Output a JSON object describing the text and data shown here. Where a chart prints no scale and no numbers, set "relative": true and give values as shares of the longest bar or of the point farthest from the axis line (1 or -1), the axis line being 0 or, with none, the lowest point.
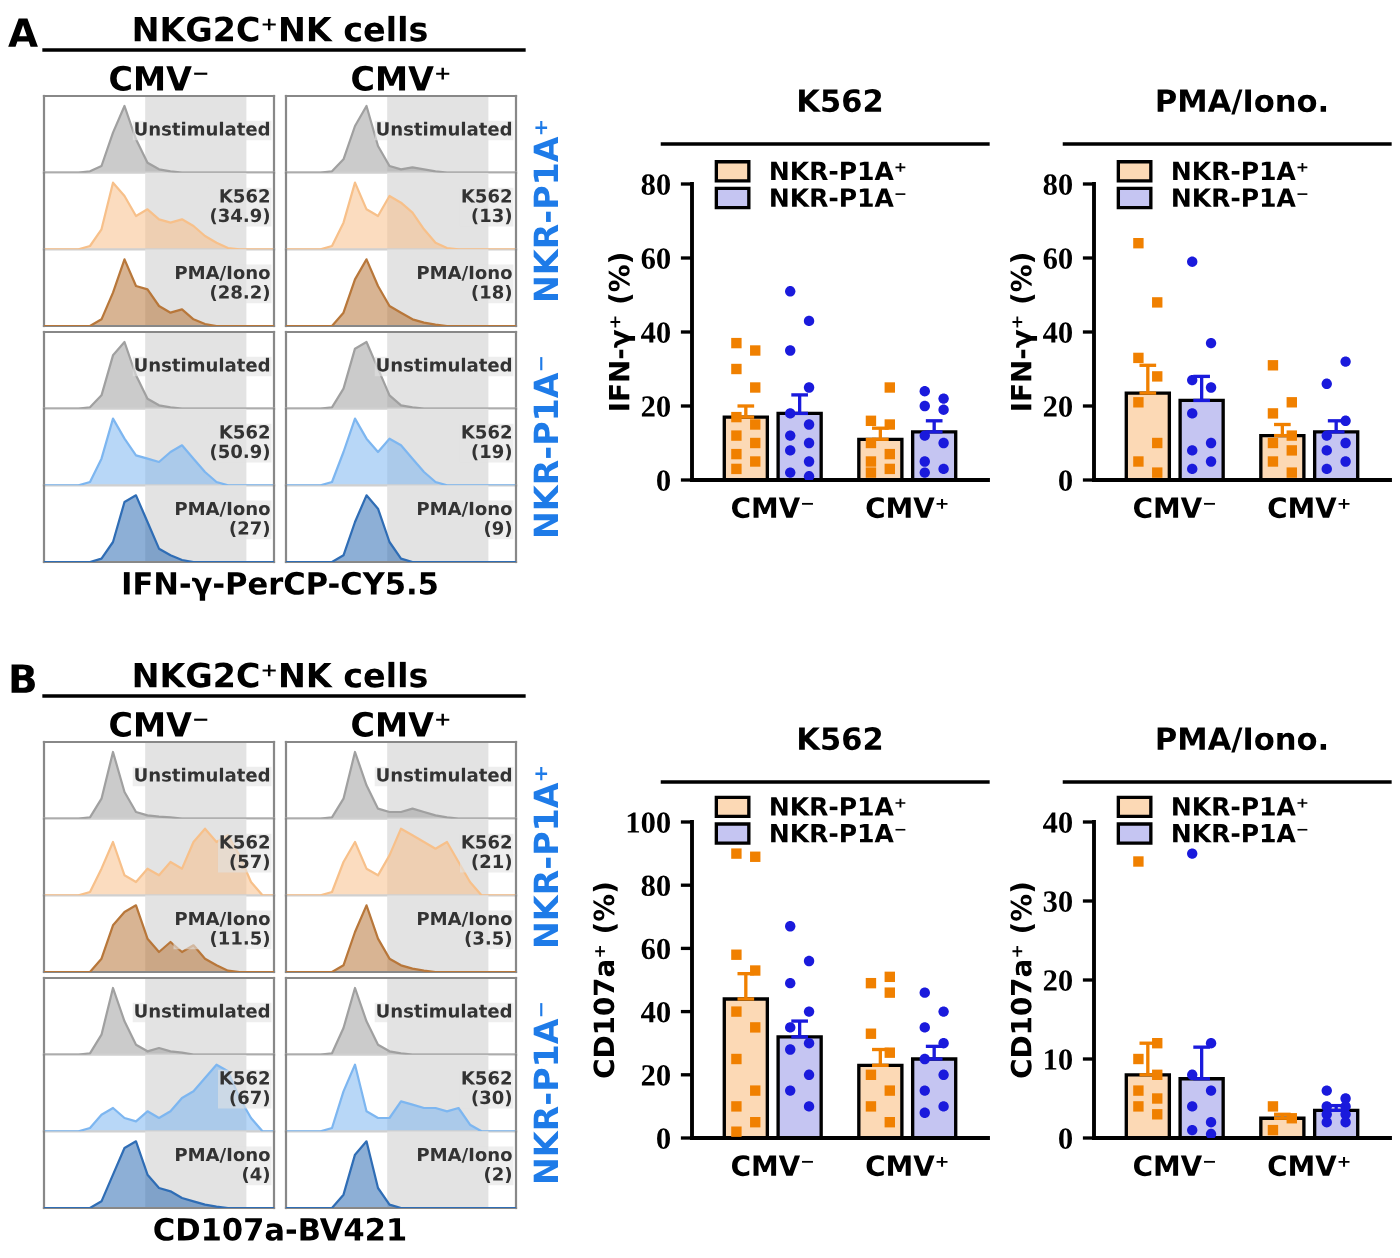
{
  "chart_data": [
    {
      "type": "area",
      "relative": true,
      "title": "A",
      "subtitle": "NKG2C⁺NK cells",
      "xlabel": "CMV⁻",
      "categories": [
        null,
        null,
        null,
        null,
        null,
        null,
        null,
        null,
        null,
        null,
        null,
        null,
        null,
        null,
        null,
        null,
        null,
        null,
        null,
        null,
        null
      ],
      "series": [
        {
          "color": "#a0a0a0",
          "values": [
            0,
            0,
            0,
            0,
            0.02,
            0.1,
            0.6,
            1,
            0.5,
            0.15,
            0.05,
            0.02,
            0,
            0,
            0,
            0,
            0,
            0,
            0,
            0,
            0
          ]
        }
      ],
      "annotations": [
        "Unstimulated"
      ]
    },
    {
      "type": "area",
      "relative": true,
      "categories": [
        null,
        null,
        null,
        null,
        null,
        null,
        null,
        null,
        null,
        null,
        null,
        null,
        null,
        null,
        null,
        null,
        null,
        null,
        null,
        null,
        null
      ],
      "series": [
        {
          "color": "#f7c08a",
          "values": [
            0,
            0,
            0,
            0,
            0.05,
            0.3,
            1,
            0.8,
            0.5,
            0.6,
            0.45,
            0.4,
            0.45,
            0.35,
            0.2,
            0.1,
            0.02,
            0,
            0,
            0,
            0
          ]
        }
      ],
      "annotations": [
        "K562\n(34.9)"
      ]
    },
    {
      "type": "area",
      "relative": true,
      "categories": [
        null,
        null,
        null,
        null,
        null,
        null,
        null,
        null,
        null,
        null,
        null,
        null,
        null,
        null,
        null,
        null,
        null,
        null,
        null,
        null,
        null
      ],
      "series": [
        {
          "color": "#b8773a",
          "values": [
            0,
            0,
            0,
            0,
            0,
            0.1,
            0.5,
            1,
            0.6,
            0.55,
            0.3,
            0.2,
            0.25,
            0.1,
            0.03,
            0,
            0,
            0,
            0,
            0,
            0
          ]
        }
      ],
      "annotations": [
        "PMA/Iono\n(28.2)"
      ]
    },
    {
      "type": "area",
      "relative": true,
      "xlabel": "CMV⁺",
      "categories": [
        null,
        null,
        null,
        null,
        null,
        null,
        null,
        null,
        null,
        null,
        null,
        null,
        null,
        null,
        null,
        null,
        null,
        null,
        null,
        null,
        null
      ],
      "series": [
        {
          "color": "#a0a0a0",
          "values": [
            0,
            0,
            0,
            0,
            0.02,
            0.2,
            0.7,
            1,
            0.4,
            0.1,
            0.05,
            0.08,
            0.05,
            0.02,
            0,
            0,
            0,
            0,
            0,
            0,
            0
          ]
        }
      ],
      "annotations": [
        "Unstimulated"
      ]
    },
    {
      "type": "area",
      "relative": true,
      "ylabel": "NKR-P1A⁺",
      "categories": [
        null,
        null,
        null,
        null,
        null,
        null,
        null,
        null,
        null,
        null,
        null,
        null,
        null,
        null,
        null,
        null,
        null,
        null,
        null,
        null,
        null
      ],
      "series": [
        {
          "color": "#f7c08a",
          "values": [
            0,
            0,
            0,
            0,
            0.05,
            0.4,
            1,
            0.6,
            0.5,
            0.8,
            0.7,
            0.55,
            0.3,
            0.1,
            0.02,
            0,
            0,
            0,
            0,
            0,
            0
          ]
        }
      ],
      "annotations": [
        "K562\n(13)"
      ]
    },
    {
      "type": "area",
      "relative": true,
      "categories": [
        null,
        null,
        null,
        null,
        null,
        null,
        null,
        null,
        null,
        null,
        null,
        null,
        null,
        null,
        null,
        null,
        null,
        null,
        null,
        null,
        null
      ],
      "series": [
        {
          "color": "#b8773a",
          "values": [
            0,
            0,
            0,
            0,
            0,
            0.2,
            0.7,
            1,
            0.6,
            0.3,
            0.2,
            0.1,
            0.05,
            0.02,
            0,
            0,
            0,
            0,
            0,
            0,
            0
          ]
        }
      ],
      "annotations": [
        "PMA/Iono\n(18)"
      ]
    },
    {
      "type": "area",
      "relative": true,
      "categories": [
        null,
        null,
        null,
        null,
        null,
        null,
        null,
        null,
        null,
        null,
        null,
        null,
        null,
        null,
        null,
        null,
        null,
        null,
        null,
        null,
        null
      ],
      "series": [
        {
          "color": "#a0a0a0",
          "values": [
            0,
            0,
            0,
            0,
            0.02,
            0.2,
            0.8,
            1,
            0.5,
            0.15,
            0.05,
            0.02,
            0,
            0,
            0,
            0,
            0,
            0,
            0,
            0,
            0
          ]
        }
      ],
      "annotations": [
        "Unstimulated"
      ]
    },
    {
      "type": "area",
      "relative": true,
      "categories": [
        null,
        null,
        null,
        null,
        null,
        null,
        null,
        null,
        null,
        null,
        null,
        null,
        null,
        null,
        null,
        null,
        null,
        null,
        null,
        null,
        null
      ],
      "series": [
        {
          "color": "#7db6f0",
          "values": [
            0,
            0,
            0,
            0,
            0.05,
            0.4,
            1,
            0.7,
            0.45,
            0.4,
            0.35,
            0.5,
            0.6,
            0.4,
            0.2,
            0.05,
            0,
            0,
            0,
            0,
            0
          ]
        }
      ],
      "annotations": [
        "K562\n(50.9)"
      ]
    },
    {
      "type": "area",
      "relative": true,
      "xlabel": "IFN-γ-PerCP-CY5.5",
      "categories": [
        null,
        null,
        null,
        null,
        null,
        null,
        null,
        null,
        null,
        null,
        null,
        null,
        null,
        null,
        null,
        null,
        null,
        null,
        null,
        null,
        null
      ],
      "series": [
        {
          "color": "#2f6db5",
          "values": [
            0,
            0,
            0,
            0,
            0,
            0.05,
            0.3,
            0.9,
            1,
            0.6,
            0.2,
            0.1,
            0.03,
            0,
            0,
            0,
            0,
            0,
            0,
            0,
            0
          ]
        }
      ],
      "annotations": [
        "PMA/Iono\n(27)"
      ]
    },
    {
      "type": "area",
      "relative": true,
      "categories": [
        null,
        null,
        null,
        null,
        null,
        null,
        null,
        null,
        null,
        null,
        null,
        null,
        null,
        null,
        null,
        null,
        null,
        null,
        null,
        null,
        null
      ],
      "series": [
        {
          "color": "#a0a0a0",
          "values": [
            0,
            0,
            0,
            0,
            0.02,
            0.3,
            0.9,
            1,
            0.6,
            0.2,
            0.05,
            0.02,
            0,
            0,
            0,
            0,
            0,
            0,
            0,
            0,
            0
          ]
        }
      ],
      "annotations": [
        "Unstimulated"
      ]
    },
    {
      "type": "area",
      "relative": true,
      "ylabel": "NKR-P1A⁻",
      "categories": [
        null,
        null,
        null,
        null,
        null,
        null,
        null,
        null,
        null,
        null,
        null,
        null,
        null,
        null,
        null,
        null,
        null,
        null,
        null,
        null,
        null
      ],
      "series": [
        {
          "color": "#7db6f0",
          "values": [
            0,
            0,
            0,
            0,
            0.05,
            0.5,
            1,
            0.7,
            0.5,
            0.7,
            0.6,
            0.4,
            0.2,
            0.05,
            0,
            0,
            0,
            0,
            0,
            0,
            0
          ]
        }
      ],
      "annotations": [
        "K562\n(19)"
      ]
    },
    {
      "type": "area",
      "relative": true,
      "categories": [
        null,
        null,
        null,
        null,
        null,
        null,
        null,
        null,
        null,
        null,
        null,
        null,
        null,
        null,
        null,
        null,
        null,
        null,
        null,
        null,
        null
      ],
      "series": [
        {
          "color": "#2f6db5",
          "values": [
            0,
            0,
            0,
            0,
            0,
            0.1,
            0.6,
            1,
            0.8,
            0.3,
            0.05,
            0,
            0,
            0,
            0,
            0,
            0,
            0,
            0,
            0,
            0
          ]
        }
      ],
      "annotations": [
        "PMA/Iono\n(9)"
      ]
    },
    {
      "type": "bar",
      "title": "K562",
      "ylabel": "IFN-γ⁺ (%)",
      "categories": [
        "CMV⁻",
        "CMV⁺"
      ],
      "ylim": [
        0,
        80
      ],
      "yticks": [
        0,
        20,
        40,
        60,
        80
      ],
      "legend": "top left",
      "series": [
        {
          "name": "NKR-P1A⁺",
          "color": "#fcd9b5",
          "values": [
            17,
            11
          ],
          "errors": [
            [
              17,
              20
            ],
            [
              11,
              14
            ]
          ]
        },
        {
          "name": "NKR-P1A⁻",
          "color": "#c5c5f2",
          "values": [
            18,
            13
          ],
          "errors": [
            [
              18,
              23
            ],
            [
              13,
              16
            ]
          ]
        },
        {
          "type": "scatter",
          "marker": "square",
          "color": "#f08000",
          "x": [
            "CMV⁻",
            "CMV⁻",
            "CMV⁻",
            "CMV⁻",
            "CMV⁻",
            "CMV⁻",
            "CMV⁻",
            "CMV⁻",
            "CMV⁻",
            "CMV⁻",
            "CMV⁻",
            "CMV⁺",
            "CMV⁺",
            "CMV⁺",
            "CMV⁺",
            "CMV⁺",
            "CMV⁺",
            "CMV⁺",
            "CMV⁺"
          ],
          "values": [
            37,
            35,
            30,
            25,
            17,
            15,
            12,
            10,
            7,
            5,
            3,
            25,
            16,
            15,
            10,
            7,
            5,
            3,
            2
          ]
        },
        {
          "type": "scatter",
          "marker": "circle",
          "color": "#1a1adc",
          "x": [
            "CMV⁻",
            "CMV⁻",
            "CMV⁻",
            "CMV⁻",
            "CMV⁻",
            "CMV⁻",
            "CMV⁻",
            "CMV⁻",
            "CMV⁻",
            "CMV⁻",
            "CMV⁻",
            "CMV⁻",
            "CMV⁺",
            "CMV⁺",
            "CMV⁺",
            "CMV⁺",
            "CMV⁺",
            "CMV⁺",
            "CMV⁺",
            "CMV⁺",
            "CMV⁺"
          ],
          "values": [
            51,
            43,
            35,
            25,
            18,
            15,
            12,
            10,
            8,
            5,
            2,
            1,
            24,
            22,
            20,
            19,
            12,
            10,
            5,
            3,
            2
          ]
        }
      ]
    },
    {
      "type": "bar",
      "title": "PMA/Iono.",
      "ylabel": "IFN-γ⁺ (%)",
      "categories": [
        "CMV⁻",
        "CMV⁺"
      ],
      "ylim": [
        0,
        80
      ],
      "yticks": [
        0,
        20,
        40,
        60,
        80
      ],
      "legend": "top left",
      "series": [
        {
          "name": "NKR-P1A⁺",
          "color": "#fcd9b5",
          "values": [
            23.5,
            12
          ],
          "errors": [
            [
              23.5,
              31
            ],
            [
              12,
              15
            ]
          ]
        },
        {
          "name": "NKR-P1A⁻",
          "color": "#c5c5f2",
          "values": [
            21.5,
            13
          ],
          "errors": [
            [
              21.5,
              28
            ],
            [
              13,
              16
            ]
          ]
        },
        {
          "type": "scatter",
          "marker": "square",
          "color": "#f08000",
          "x": [
            "CMV⁻",
            "CMV⁻",
            "CMV⁻",
            "CMV⁻",
            "CMV⁻",
            "CMV⁻",
            "CMV⁻",
            "CMV⁻",
            "CMV⁺",
            "CMV⁺",
            "CMV⁺",
            "CMV⁺",
            "CMV⁺",
            "CMV⁺",
            "CMV⁺",
            "CMV⁺"
          ],
          "values": [
            64,
            48,
            33,
            28,
            21,
            10,
            5,
            2,
            31,
            21,
            18,
            12,
            10,
            8,
            5,
            2
          ]
        },
        {
          "type": "scatter",
          "marker": "circle",
          "color": "#1a1adc",
          "x": [
            "CMV⁻",
            "CMV⁻",
            "CMV⁻",
            "CMV⁻",
            "CMV⁻",
            "CMV⁻",
            "CMV⁻",
            "CMV⁻",
            "CMV⁻",
            "CMV⁺",
            "CMV⁺",
            "CMV⁺",
            "CMV⁺",
            "CMV⁺",
            "CMV⁺",
            "CMV⁺",
            "CMV⁺"
          ],
          "values": [
            59,
            37,
            27,
            25,
            18,
            10,
            8,
            5,
            3,
            32,
            26,
            16,
            12,
            10,
            8,
            5,
            3
          ]
        }
      ]
    },
    {
      "type": "area",
      "relative": true,
      "title": "B",
      "subtitle": "NKG2C⁺NK cells",
      "xlabel": "CMV⁻",
      "categories": [
        null,
        null,
        null,
        null,
        null,
        null,
        null,
        null,
        null,
        null,
        null,
        null,
        null,
        null,
        null,
        null,
        null,
        null,
        null,
        null,
        null
      ],
      "series": [
        {
          "color": "#a0a0a0",
          "values": [
            0,
            0,
            0,
            0,
            0.02,
            0.3,
            1,
            0.4,
            0.1,
            0.05,
            0.03,
            0.02,
            0,
            0,
            0,
            0,
            0,
            0,
            0,
            0,
            0
          ]
        }
      ],
      "annotations": [
        "Unstimulated"
      ]
    },
    {
      "type": "area",
      "relative": true,
      "categories": [
        null,
        null,
        null,
        null,
        null,
        null,
        null,
        null,
        null,
        null,
        null,
        null,
        null,
        null,
        null,
        null,
        null,
        null,
        null,
        null,
        null
      ],
      "series": [
        {
          "color": "#f7c08a",
          "values": [
            0,
            0,
            0,
            0,
            0.05,
            0.4,
            0.8,
            0.3,
            0.2,
            0.4,
            0.3,
            0.5,
            0.4,
            0.8,
            1,
            0.8,
            0.9,
            0.6,
            0.2,
            0,
            0
          ]
        }
      ],
      "annotations": [
        "K562\n(57)"
      ]
    },
    {
      "type": "area",
      "relative": true,
      "categories": [
        null,
        null,
        null,
        null,
        null,
        null,
        null,
        null,
        null,
        null,
        null,
        null,
        null,
        null,
        null,
        null,
        null,
        null,
        null,
        null,
        null
      ],
      "series": [
        {
          "color": "#b8773a",
          "values": [
            0,
            0,
            0,
            0,
            0,
            0.2,
            0.7,
            0.9,
            1,
            0.5,
            0.3,
            0.45,
            0.3,
            0.4,
            0.2,
            0.1,
            0.02,
            0,
            0,
            0,
            0
          ]
        }
      ],
      "annotations": [
        "PMA/Iono\n(11.5)"
      ]
    },
    {
      "type": "area",
      "relative": true,
      "xlabel": "CMV⁺",
      "categories": [
        null,
        null,
        null,
        null,
        null,
        null,
        null,
        null,
        null,
        null,
        null,
        null,
        null,
        null,
        null,
        null,
        null,
        null,
        null,
        null,
        null
      ],
      "series": [
        {
          "color": "#a0a0a0",
          "values": [
            0,
            0,
            0,
            0,
            0.02,
            0.3,
            1,
            0.5,
            0.15,
            0.1,
            0.1,
            0.15,
            0.1,
            0.05,
            0.02,
            0,
            0,
            0,
            0,
            0,
            0
          ]
        }
      ],
      "annotations": [
        "Unstimulated"
      ]
    },
    {
      "type": "area",
      "relative": true,
      "ylabel": "NKR-P1A⁺",
      "categories": [
        null,
        null,
        null,
        null,
        null,
        null,
        null,
        null,
        null,
        null,
        null,
        null,
        null,
        null,
        null,
        null,
        null,
        null,
        null,
        null,
        null
      ],
      "series": [
        {
          "color": "#f7c08a",
          "values": [
            0,
            0,
            0,
            0,
            0.05,
            0.5,
            0.8,
            0.4,
            0.3,
            0.6,
            1,
            0.9,
            0.8,
            0.7,
            0.8,
            0.5,
            0.2,
            0,
            0,
            0,
            0
          ]
        }
      ],
      "annotations": [
        "K562\n(21)"
      ]
    },
    {
      "type": "area",
      "relative": true,
      "categories": [
        null,
        null,
        null,
        null,
        null,
        null,
        null,
        null,
        null,
        null,
        null,
        null,
        null,
        null,
        null,
        null,
        null,
        null,
        null,
        null,
        null
      ],
      "series": [
        {
          "color": "#b8773a",
          "values": [
            0,
            0,
            0,
            0,
            0,
            0.1,
            0.6,
            1,
            0.5,
            0.2,
            0.1,
            0.05,
            0.02,
            0,
            0,
            0,
            0,
            0,
            0,
            0,
            0
          ]
        }
      ],
      "annotations": [
        "PMA/Iono\n(3.5)"
      ]
    },
    {
      "type": "area",
      "relative": true,
      "categories": [
        null,
        null,
        null,
        null,
        null,
        null,
        null,
        null,
        null,
        null,
        null,
        null,
        null,
        null,
        null,
        null,
        null,
        null,
        null,
        null,
        null
      ],
      "series": [
        {
          "color": "#a0a0a0",
          "values": [
            0,
            0,
            0,
            0,
            0.02,
            0.3,
            1,
            0.5,
            0.15,
            0.05,
            0.1,
            0.05,
            0.03,
            0,
            0,
            0,
            0,
            0,
            0,
            0,
            0
          ]
        }
      ],
      "annotations": [
        "Unstimulated"
      ]
    },
    {
      "type": "area",
      "relative": true,
      "categories": [
        null,
        null,
        null,
        null,
        null,
        null,
        null,
        null,
        null,
        null,
        null,
        null,
        null,
        null,
        null,
        null,
        null,
        null,
        null,
        null,
        null
      ],
      "series": [
        {
          "color": "#7db6f0",
          "values": [
            0,
            0,
            0,
            0,
            0.05,
            0.25,
            0.35,
            0.2,
            0.15,
            0.3,
            0.2,
            0.3,
            0.5,
            0.6,
            0.8,
            1,
            0.9,
            0.5,
            0.2,
            0,
            0
          ]
        }
      ],
      "annotations": [
        "K562\n(67)"
      ]
    },
    {
      "type": "area",
      "relative": true,
      "xlabel": "CD107a-BV421",
      "categories": [
        null,
        null,
        null,
        null,
        null,
        null,
        null,
        null,
        null,
        null,
        null,
        null,
        null,
        null,
        null,
        null,
        null,
        null,
        null,
        null,
        null
      ],
      "series": [
        {
          "color": "#2f6db5",
          "values": [
            0,
            0,
            0,
            0,
            0,
            0.1,
            0.5,
            0.9,
            1,
            0.5,
            0.3,
            0.25,
            0.15,
            0.1,
            0.05,
            0.02,
            0,
            0,
            0,
            0,
            0
          ]
        }
      ],
      "annotations": [
        "PMA/Iono\n(4)"
      ]
    },
    {
      "type": "area",
      "relative": true,
      "categories": [
        null,
        null,
        null,
        null,
        null,
        null,
        null,
        null,
        null,
        null,
        null,
        null,
        null,
        null,
        null,
        null,
        null,
        null,
        null,
        null,
        null
      ],
      "series": [
        {
          "color": "#a0a0a0",
          "values": [
            0,
            0,
            0,
            0,
            0.02,
            0.4,
            1,
            0.5,
            0.15,
            0.05,
            0.02,
            0,
            0,
            0,
            0,
            0,
            0,
            0,
            0,
            0,
            0
          ]
        }
      ],
      "annotations": [
        "Unstimulated"
      ]
    },
    {
      "type": "area",
      "relative": true,
      "ylabel": "NKR-P1A⁻",
      "categories": [
        null,
        null,
        null,
        null,
        null,
        null,
        null,
        null,
        null,
        null,
        null,
        null,
        null,
        null,
        null,
        null,
        null,
        null,
        null,
        null,
        null
      ],
      "series": [
        {
          "color": "#7db6f0",
          "values": [
            0,
            0,
            0,
            0,
            0.05,
            0.6,
            1,
            0.3,
            0.2,
            0.2,
            0.45,
            0.4,
            0.35,
            0.35,
            0.3,
            0.35,
            0.1,
            0,
            0,
            0,
            0
          ]
        }
      ],
      "annotations": [
        "K562\n(30)"
      ]
    },
    {
      "type": "area",
      "relative": true,
      "categories": [
        null,
        null,
        null,
        null,
        null,
        null,
        null,
        null,
        null,
        null,
        null,
        null,
        null,
        null,
        null,
        null,
        null,
        null,
        null,
        null,
        null
      ],
      "series": [
        {
          "color": "#2f6db5",
          "values": [
            0,
            0,
            0,
            0,
            0,
            0.2,
            0.8,
            1,
            0.3,
            0.05,
            0,
            0,
            0,
            0,
            0,
            0,
            0,
            0,
            0,
            0,
            0
          ]
        }
      ],
      "annotations": [
        "PMA/Iono\n(2)"
      ]
    },
    {
      "type": "bar",
      "title": "K562",
      "ylabel": "CD107a⁺ (%)",
      "categories": [
        "CMV⁻",
        "CMV⁺"
      ],
      "ylim": [
        0,
        100
      ],
      "yticks": [
        0,
        20,
        40,
        60,
        80,
        100
      ],
      "legend": "top left",
      "series": [
        {
          "name": "NKR-P1A⁺",
          "color": "#fcd9b5",
          "values": [
            44,
            23
          ],
          "errors": [
            [
              44,
              52
            ],
            [
              23,
              28
            ]
          ]
        },
        {
          "name": "NKR-P1A⁻",
          "color": "#c5c5f2",
          "values": [
            32,
            25
          ],
          "errors": [
            [
              32,
              37
            ],
            [
              25,
              29
            ]
          ]
        },
        {
          "type": "scatter",
          "marker": "square",
          "color": "#f08000",
          "x": [
            "CMV⁻",
            "CMV⁻",
            "CMV⁻",
            "CMV⁻",
            "CMV⁻",
            "CMV⁻",
            "CMV⁻",
            "CMV⁻",
            "CMV⁻",
            "CMV⁻",
            "CMV⁻",
            "CMV⁺",
            "CMV⁺",
            "CMV⁺",
            "CMV⁺",
            "CMV⁺",
            "CMV⁺",
            "CMV⁺",
            "CMV⁺",
            "CMV⁺"
          ],
          "values": [
            90,
            89,
            58,
            53,
            40,
            35,
            25,
            15,
            10,
            5,
            2,
            51,
            49,
            46,
            33,
            27,
            20,
            15,
            10,
            5
          ]
        },
        {
          "type": "scatter",
          "marker": "circle",
          "color": "#1a1adc",
          "x": [
            "CMV⁻",
            "CMV⁻",
            "CMV⁻",
            "CMV⁻",
            "CMV⁻",
            "CMV⁻",
            "CMV⁻",
            "CMV⁻",
            "CMV⁻",
            "CMV⁻",
            "CMV⁺",
            "CMV⁺",
            "CMV⁺",
            "CMV⁺",
            "CMV⁺",
            "CMV⁺",
            "CMV⁺",
            "CMV⁺",
            "CMV⁺"
          ],
          "values": [
            67,
            56,
            49,
            40,
            35,
            30,
            28,
            20,
            15,
            10,
            46,
            40,
            35,
            30,
            25,
            20,
            15,
            10,
            8
          ]
        }
      ]
    },
    {
      "type": "bar",
      "title": "PMA/Iono.",
      "ylabel": "CD107a⁺ (%)",
      "categories": [
        "CMV⁻",
        "CMV⁺"
      ],
      "ylim": [
        0,
        40
      ],
      "yticks": [
        0,
        10,
        20,
        30,
        40
      ],
      "legend": "top left",
      "series": [
        {
          "name": "NKR-P1A⁺",
          "color": "#fcd9b5",
          "values": [
            8,
            2.5
          ],
          "errors": [
            [
              8,
              12
            ],
            [
              2.5,
              3
            ]
          ]
        },
        {
          "name": "NKR-P1A⁻",
          "color": "#c5c5f2",
          "values": [
            7.5,
            3.5
          ],
          "errors": [
            [
              7.5,
              11.5
            ],
            [
              3.5,
              4.1
            ]
          ]
        },
        {
          "type": "scatter",
          "marker": "square",
          "color": "#f08000",
          "x": [
            "CMV⁻",
            "CMV⁻",
            "CMV⁻",
            "CMV⁻",
            "CMV⁻",
            "CMV⁻",
            "CMV⁻",
            "CMV⁻",
            "CMV⁺",
            "CMV⁺",
            "CMV⁺"
          ],
          "values": [
            35,
            12,
            10,
            8,
            6,
            5,
            4,
            3,
            4,
            2.5,
            1
          ]
        },
        {
          "type": "scatter",
          "marker": "circle",
          "color": "#1a1adc",
          "x": [
            "CMV⁻",
            "CMV⁻",
            "CMV⁻",
            "CMV⁻",
            "CMV⁻",
            "CMV⁻",
            "CMV⁻",
            "CMV⁻",
            "CMV⁺",
            "CMV⁺",
            "CMV⁺",
            "CMV⁺",
            "CMV⁺",
            "CMV⁺",
            "CMV⁺",
            "CMV⁺"
          ],
          "values": [
            36,
            12,
            8,
            6,
            4,
            2,
            1,
            0.5,
            6,
            5,
            4,
            4,
            3,
            3,
            2,
            2
          ]
        }
      ]
    }
  ]
}
